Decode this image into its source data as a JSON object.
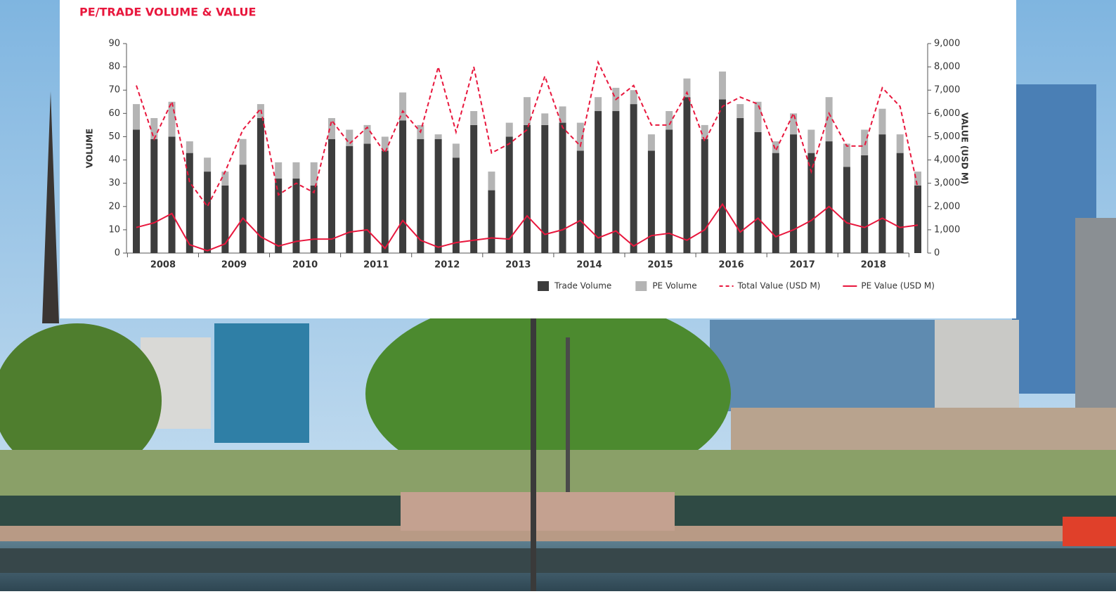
{
  "chart_data": {
    "type": "bar",
    "title": "PE/TRADE VOLUME & VALUE",
    "y_label": "VOLUME",
    "y2_label": "VALUE (USD M)",
    "categories": [
      null,
      "2008",
      null,
      null,
      null,
      "2009",
      null,
      null,
      null,
      "2010",
      null,
      null,
      null,
      "2011",
      null,
      null,
      null,
      "2012",
      null,
      null,
      null,
      "2013",
      null,
      null,
      null,
      "2014",
      null,
      null,
      null,
      "2015",
      null,
      null,
      null,
      "2016",
      null,
      null,
      null,
      "2017",
      null,
      null,
      null,
      "2018",
      null,
      null,
      null
    ],
    "series": [
      {
        "name": "Trade Volume",
        "type": "bar",
        "color": "#3d3d3d",
        "values": [
          53,
          49,
          50,
          43,
          35,
          29,
          38,
          58,
          32,
          32,
          29,
          49,
          46,
          47,
          44,
          57,
          49,
          49,
          41,
          55,
          27,
          50,
          55,
          55,
          56,
          44,
          61,
          61,
          64,
          44,
          53,
          67,
          49,
          66,
          58,
          52,
          43,
          51,
          43,
          48,
          37,
          42,
          51,
          43,
          29
        ]
      },
      {
        "name": "PE Volume",
        "type": "bar",
        "color": "#b4b4b4",
        "values": [
          11,
          9,
          15,
          5,
          6,
          6,
          11,
          6,
          7,
          7,
          10,
          9,
          7,
          8,
          6,
          12,
          6,
          2,
          6,
          6,
          8,
          6,
          12,
          5,
          7,
          12,
          6,
          10,
          6,
          7,
          8,
          8,
          6,
          12,
          6,
          13,
          5,
          9,
          10,
          19,
          10,
          11,
          11,
          8,
          6
        ]
      },
      {
        "name": "Total Value (USD M)",
        "type": "line",
        "dashed": true,
        "axis": "y2",
        "color": "#e8173d",
        "values": [
          7200,
          4900,
          6500,
          3050,
          2000,
          3500,
          5300,
          6200,
          2500,
          3000,
          2600,
          5700,
          4700,
          5400,
          4300,
          6100,
          5200,
          8000,
          5200,
          8000,
          4300,
          4700,
          5300,
          7600,
          5400,
          4600,
          8200,
          6600,
          7200,
          5500,
          5500,
          6900,
          4800,
          6300,
          6700,
          6400,
          4400,
          6000,
          3500,
          6000,
          4600,
          4600,
          7100,
          6300,
          2800
        ]
      },
      {
        "name": "PE Value (USD M)",
        "type": "line",
        "dashed": false,
        "axis": "y2",
        "color": "#e8173d",
        "values": [
          1100,
          1300,
          1700,
          360,
          100,
          400,
          1500,
          700,
          300,
          500,
          600,
          600,
          900,
          1000,
          200,
          1400,
          550,
          250,
          450,
          550,
          650,
          600,
          1600,
          800,
          1000,
          1400,
          650,
          950,
          300,
          750,
          850,
          550,
          1000,
          2100,
          900,
          1500,
          700,
          1000,
          1400,
          2000,
          1300,
          1100,
          1500,
          1100,
          1200
        ]
      }
    ],
    "ylim": [
      0,
      90
    ],
    "yticks": [
      0,
      10,
      20,
      30,
      40,
      50,
      60,
      70,
      80,
      90
    ],
    "y2lim": [
      0,
      9000
    ],
    "y2ticks": [
      0,
      {
        "value": 1000,
        "label": "1,000"
      },
      {
        "value": 2000,
        "label": "2,000"
      },
      {
        "value": 3000,
        "label": "3,000"
      },
      {
        "value": 4000,
        "label": "4,000"
      },
      {
        "value": 5000,
        "label": "5,000"
      },
      {
        "value": 6000,
        "label": "6,000"
      },
      {
        "value": 7000,
        "label": "7,000"
      },
      {
        "value": 8000,
        "label": "8,000"
      },
      {
        "value": 9000,
        "label": "9,000"
      }
    ],
    "stacked": true,
    "legend": "bottom-right",
    "title_color": "#e8173d"
  }
}
